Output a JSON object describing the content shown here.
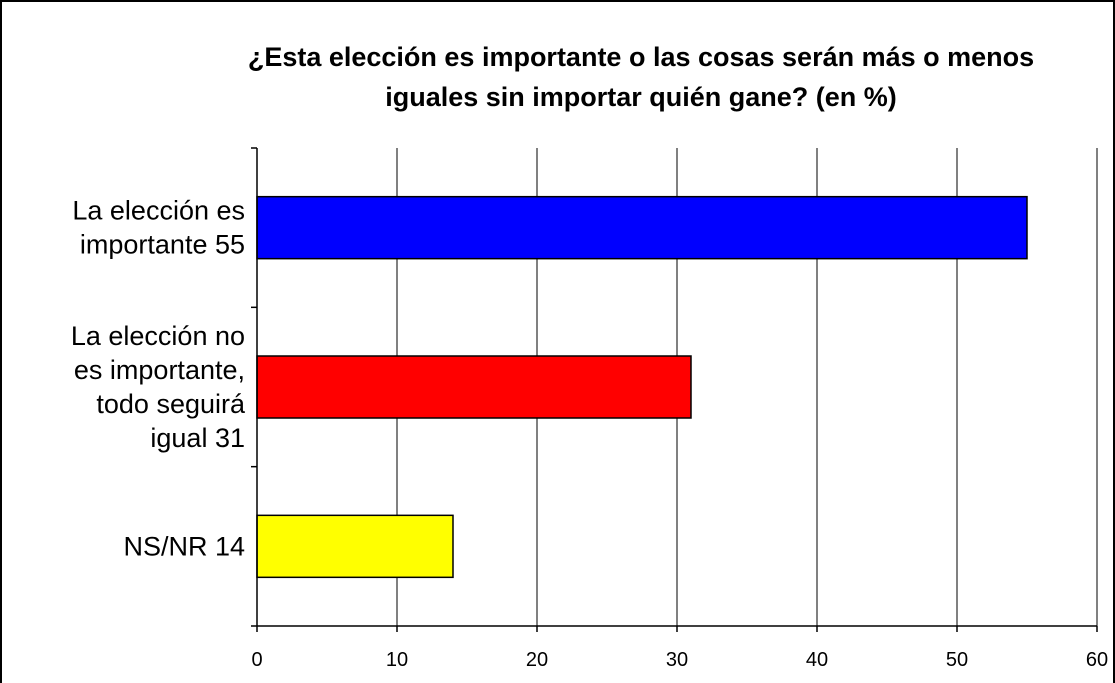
{
  "chart_data": {
    "type": "bar",
    "orientation": "horizontal",
    "title_lines": [
      "¿Esta elección es importante o las cosas serán más o menos",
      "iguales sin importar quién gane? (en %)"
    ],
    "categories": [
      [
        "La elección es",
        "importante 55"
      ],
      [
        "La elección no",
        "es importante,",
        "todo seguirá",
        "igual 31"
      ],
      [
        "NS/NR 14"
      ]
    ],
    "values": [
      55,
      31,
      14
    ],
    "colors": [
      "#0000FF",
      "#FF0000",
      "#FFFF00"
    ],
    "xlim": [
      0,
      60
    ],
    "xticks": [
      0,
      10,
      20,
      30,
      40,
      50,
      60
    ],
    "grid": "vertical",
    "legend": "none"
  }
}
